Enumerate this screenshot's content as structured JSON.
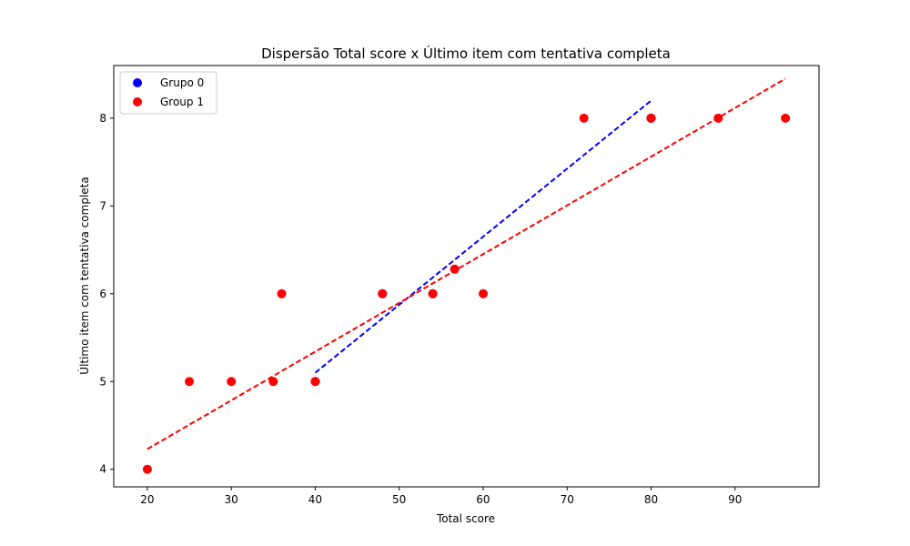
{
  "chart_data": {
    "type": "scatter",
    "title": "Dispersão Total score x Último item com tentativa completa",
    "xlabel": "Total score",
    "ylabel": "Último item com tentativa completa",
    "xlim": [
      16,
      100
    ],
    "ylim": [
      3.8,
      8.6
    ],
    "xticks": [
      20,
      30,
      40,
      50,
      60,
      70,
      80,
      90
    ],
    "yticks": [
      4,
      5,
      6,
      7,
      8
    ],
    "grid": false,
    "legend_position": "top-left",
    "series": [
      {
        "name": "Grupo 0",
        "color": "#0000ff",
        "points": [
          [
            40,
            5
          ],
          [
            48,
            6
          ],
          [
            54,
            6
          ],
          [
            80,
            8
          ],
          [
            80,
            8
          ]
        ],
        "trend": {
          "x": [
            40,
            80
          ],
          "y": [
            5.1,
            8.2
          ],
          "dash": true
        }
      },
      {
        "name": "Group 1",
        "color": "#ff0000",
        "points": [
          [
            20,
            4
          ],
          [
            25,
            5
          ],
          [
            30,
            5
          ],
          [
            35,
            5
          ],
          [
            36,
            6
          ],
          [
            40,
            5
          ],
          [
            48,
            6
          ],
          [
            54,
            6
          ],
          [
            56.6,
            6.28
          ],
          [
            60,
            6
          ],
          [
            72,
            8
          ],
          [
            80,
            8
          ],
          [
            88,
            8
          ],
          [
            96,
            8
          ]
        ],
        "trend": {
          "x": [
            20,
            96
          ],
          "y": [
            4.23,
            8.45
          ],
          "dash": true
        }
      }
    ]
  }
}
